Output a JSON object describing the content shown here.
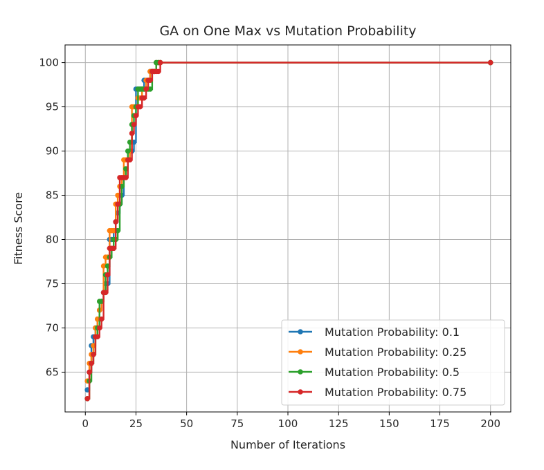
{
  "chart_data": {
    "type": "line",
    "title": "GA on One Max vs Mutation Probability",
    "xlabel": "Number of Iterations",
    "ylabel": "Fitness Score",
    "xlim": [
      -10,
      210
    ],
    "ylim": [
      60.5,
      102
    ],
    "xticks": [
      0,
      25,
      50,
      75,
      100,
      125,
      150,
      175,
      200
    ],
    "yticks": [
      65,
      70,
      75,
      80,
      85,
      90,
      95,
      100
    ],
    "grid": true,
    "legend_position": "lower-right",
    "series": [
      {
        "name": "Mutation Probability: 0.1",
        "color": "#1f77b4",
        "x": [
          1,
          2,
          3,
          4,
          5,
          6,
          7,
          8,
          9,
          10,
          11,
          12,
          13,
          14,
          15,
          16,
          17,
          18,
          19,
          20,
          21,
          22,
          23,
          24,
          25,
          26,
          27,
          28,
          29,
          30,
          31,
          32,
          33,
          34,
          35,
          36,
          37,
          200
        ],
        "y": [
          63,
          65,
          68,
          69,
          70,
          71,
          72,
          73,
          74,
          75,
          75,
          80,
          80,
          81,
          82,
          83,
          84,
          85,
          87,
          88,
          89,
          90,
          90,
          91,
          97,
          97,
          97,
          97,
          98,
          98,
          98,
          99,
          99,
          99,
          100,
          100,
          100,
          100
        ]
      },
      {
        "name": "Mutation Probability: 0.25",
        "color": "#ff7f0e",
        "x": [
          1,
          2,
          3,
          4,
          5,
          6,
          7,
          8,
          9,
          10,
          11,
          12,
          13,
          14,
          15,
          16,
          17,
          18,
          19,
          20,
          21,
          22,
          23,
          24,
          25,
          26,
          27,
          28,
          29,
          30,
          31,
          32,
          33,
          34,
          35,
          36,
          37,
          200
        ],
        "y": [
          64,
          66,
          67,
          68,
          70,
          71,
          72,
          73,
          77,
          78,
          78,
          81,
          81,
          81,
          84,
          85,
          86,
          87,
          89,
          89,
          89,
          90,
          95,
          95,
          95,
          96,
          96,
          97,
          97,
          98,
          98,
          99,
          99,
          99,
          100,
          100,
          100,
          100
        ]
      },
      {
        "name": "Mutation Probability: 0.5",
        "color": "#2ca02c",
        "x": [
          1,
          2,
          3,
          4,
          5,
          6,
          7,
          8,
          9,
          10,
          11,
          12,
          13,
          14,
          15,
          16,
          17,
          18,
          19,
          20,
          21,
          22,
          23,
          24,
          25,
          26,
          27,
          28,
          29,
          30,
          31,
          32,
          33,
          34,
          35,
          36,
          37,
          200
        ],
        "y": [
          62,
          64,
          66,
          67,
          69,
          70,
          73,
          73,
          74,
          76,
          77,
          78,
          79,
          80,
          80,
          81,
          84,
          86,
          87,
          88,
          90,
          91,
          93,
          94,
          95,
          97,
          97,
          97,
          97,
          97,
          97,
          97,
          99,
          99,
          100,
          100,
          100,
          100
        ]
      },
      {
        "name": "Mutation Probability: 0.75",
        "color": "#d62728",
        "x": [
          1,
          2,
          3,
          4,
          5,
          6,
          7,
          8,
          9,
          10,
          11,
          12,
          13,
          14,
          15,
          16,
          17,
          18,
          19,
          20,
          21,
          22,
          23,
          24,
          25,
          26,
          27,
          28,
          29,
          30,
          31,
          32,
          33,
          34,
          35,
          36,
          37,
          200
        ],
        "y": [
          62,
          65,
          66,
          67,
          69,
          69,
          70,
          71,
          74,
          74,
          76,
          79,
          79,
          79,
          82,
          84,
          87,
          87,
          87,
          87,
          89,
          89,
          92,
          93,
          94,
          95,
          95,
          96,
          96,
          97,
          98,
          98,
          99,
          99,
          99,
          99,
          100,
          100
        ]
      }
    ]
  }
}
